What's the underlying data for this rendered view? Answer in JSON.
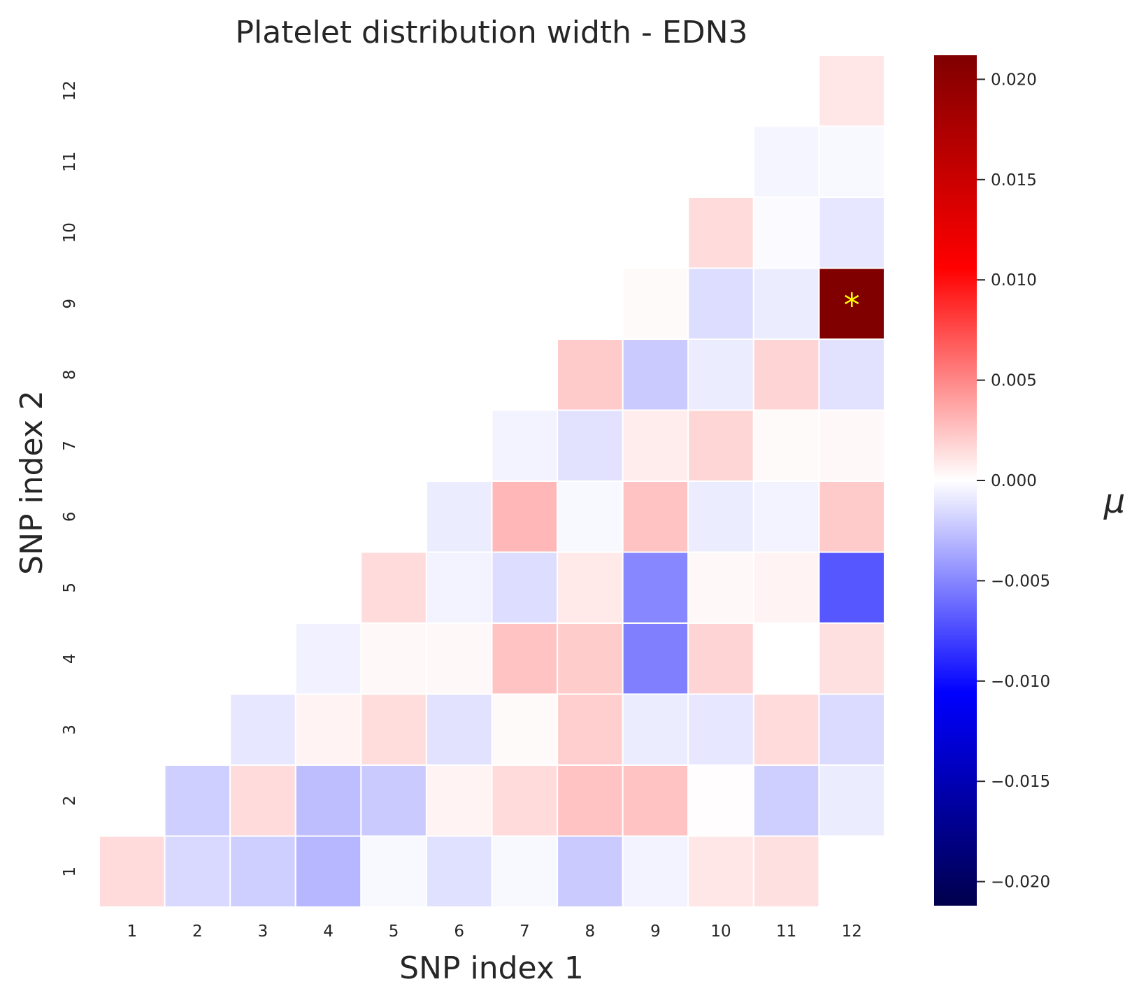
{
  "chart_data": {
    "type": "heatmap",
    "title": "Platelet distribution width - EDN3",
    "xlabel": "SNP index 1",
    "ylabel": "SNP index 2",
    "x_categories": [
      "1",
      "2",
      "3",
      "4",
      "5",
      "6",
      "7",
      "8",
      "9",
      "10",
      "11",
      "12"
    ],
    "y_categories": [
      "1",
      "2",
      "3",
      "4",
      "5",
      "6",
      "7",
      "8",
      "9",
      "10",
      "11",
      "12"
    ],
    "colorbar": {
      "label": "μ",
      "colormap": "seismic",
      "vmin": -0.0212,
      "vmax": 0.0212,
      "ticks": [
        "0.020",
        "0.015",
        "0.010",
        "0.005",
        "0.000",
        "−0.005",
        "−0.010",
        "−0.015",
        "−0.020"
      ],
      "tick_values": [
        0.02,
        0.015,
        0.01,
        0.005,
        0.0,
        -0.005,
        -0.01,
        -0.015,
        -0.02
      ]
    },
    "grid": false,
    "cells": [
      {
        "x": 1,
        "y": 1,
        "value": 0.0015
      },
      {
        "x": 2,
        "y": 1,
        "value": -0.0016
      },
      {
        "x": 3,
        "y": 1,
        "value": -0.002
      },
      {
        "x": 4,
        "y": 1,
        "value": -0.003
      },
      {
        "x": 5,
        "y": 1,
        "value": -0.0003
      },
      {
        "x": 6,
        "y": 1,
        "value": -0.0013
      },
      {
        "x": 7,
        "y": 1,
        "value": -0.0003
      },
      {
        "x": 8,
        "y": 1,
        "value": -0.0022
      },
      {
        "x": 9,
        "y": 1,
        "value": -0.0005
      },
      {
        "x": 10,
        "y": 1,
        "value": 0.001
      },
      {
        "x": 11,
        "y": 1,
        "value": 0.0013
      },
      {
        "x": 2,
        "y": 2,
        "value": -0.002
      },
      {
        "x": 3,
        "y": 2,
        "value": 0.0015
      },
      {
        "x": 4,
        "y": 2,
        "value": -0.0027
      },
      {
        "x": 5,
        "y": 2,
        "value": -0.0022
      },
      {
        "x": 6,
        "y": 2,
        "value": 0.0005
      },
      {
        "x": 7,
        "y": 2,
        "value": 0.0015
      },
      {
        "x": 8,
        "y": 2,
        "value": 0.0025
      },
      {
        "x": 9,
        "y": 2,
        "value": 0.0025
      },
      {
        "x": 10,
        "y": 2,
        "value": 0.0001
      },
      {
        "x": 11,
        "y": 2,
        "value": -0.002
      },
      {
        "x": 12,
        "y": 2,
        "value": -0.0008
      },
      {
        "x": 3,
        "y": 3,
        "value": -0.001
      },
      {
        "x": 4,
        "y": 3,
        "value": 0.0005
      },
      {
        "x": 5,
        "y": 3,
        "value": 0.0014
      },
      {
        "x": 6,
        "y": 3,
        "value": -0.0012
      },
      {
        "x": 7,
        "y": 3,
        "value": 0.0002
      },
      {
        "x": 8,
        "y": 3,
        "value": 0.002
      },
      {
        "x": 9,
        "y": 3,
        "value": -0.0008
      },
      {
        "x": 10,
        "y": 3,
        "value": -0.001
      },
      {
        "x": 11,
        "y": 3,
        "value": 0.0015
      },
      {
        "x": 12,
        "y": 3,
        "value": -0.0015
      },
      {
        "x": 4,
        "y": 4,
        "value": -0.0006
      },
      {
        "x": 5,
        "y": 4,
        "value": 0.0003
      },
      {
        "x": 6,
        "y": 4,
        "value": 0.0003
      },
      {
        "x": 7,
        "y": 4,
        "value": 0.0025
      },
      {
        "x": 8,
        "y": 4,
        "value": 0.0021
      },
      {
        "x": 9,
        "y": 4,
        "value": -0.0053
      },
      {
        "x": 10,
        "y": 4,
        "value": 0.0018
      },
      {
        "x": 11,
        "y": 4,
        "value": 0.0
      },
      {
        "x": 12,
        "y": 4,
        "value": 0.0013
      },
      {
        "x": 5,
        "y": 5,
        "value": 0.0015
      },
      {
        "x": 6,
        "y": 5,
        "value": -0.0005
      },
      {
        "x": 7,
        "y": 5,
        "value": -0.0014
      },
      {
        "x": 8,
        "y": 5,
        "value": 0.0009
      },
      {
        "x": 9,
        "y": 5,
        "value": -0.005
      },
      {
        "x": 10,
        "y": 5,
        "value": 0.0003
      },
      {
        "x": 11,
        "y": 5,
        "value": 0.0005
      },
      {
        "x": 12,
        "y": 5,
        "value": -0.007
      },
      {
        "x": 6,
        "y": 6,
        "value": -0.0008
      },
      {
        "x": 7,
        "y": 6,
        "value": 0.003
      },
      {
        "x": 8,
        "y": 6,
        "value": -0.0003
      },
      {
        "x": 9,
        "y": 6,
        "value": 0.0025
      },
      {
        "x": 10,
        "y": 6,
        "value": -0.0008
      },
      {
        "x": 11,
        "y": 6,
        "value": -0.0005
      },
      {
        "x": 12,
        "y": 6,
        "value": 0.0022
      },
      {
        "x": 7,
        "y": 7,
        "value": -0.0005
      },
      {
        "x": 8,
        "y": 7,
        "value": -0.0012
      },
      {
        "x": 9,
        "y": 7,
        "value": 0.0008
      },
      {
        "x": 10,
        "y": 7,
        "value": 0.0017
      },
      {
        "x": 11,
        "y": 7,
        "value": 0.0002
      },
      {
        "x": 12,
        "y": 7,
        "value": 0.0003
      },
      {
        "x": 8,
        "y": 8,
        "value": 0.0022
      },
      {
        "x": 9,
        "y": 8,
        "value": -0.0022
      },
      {
        "x": 10,
        "y": 8,
        "value": -0.0008
      },
      {
        "x": 11,
        "y": 8,
        "value": 0.0018
      },
      {
        "x": 12,
        "y": 8,
        "value": -0.0012
      },
      {
        "x": 9,
        "y": 9,
        "value": 0.0002
      },
      {
        "x": 10,
        "y": 9,
        "value": -0.0014
      },
      {
        "x": 11,
        "y": 9,
        "value": -0.0008
      },
      {
        "x": 12,
        "y": 9,
        "value": 0.0212,
        "annotation": "*"
      },
      {
        "x": 10,
        "y": 10,
        "value": 0.0015
      },
      {
        "x": 11,
        "y": 10,
        "value": -0.0002
      },
      {
        "x": 12,
        "y": 10,
        "value": -0.001
      },
      {
        "x": 11,
        "y": 11,
        "value": -0.0004
      },
      {
        "x": 12,
        "y": 11,
        "value": -0.0003
      },
      {
        "x": 12,
        "y": 12,
        "value": 0.001
      }
    ]
  }
}
